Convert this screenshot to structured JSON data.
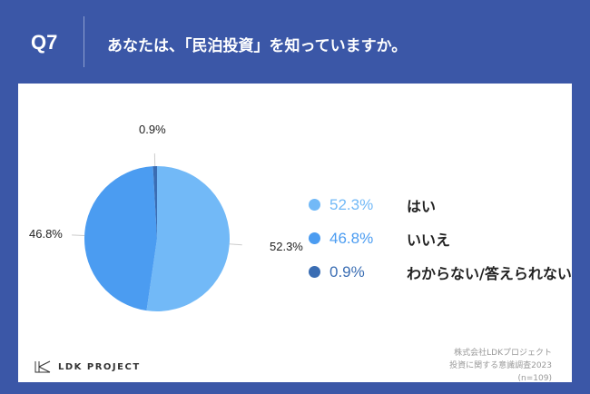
{
  "header": {
    "q": "Q7",
    "title": "あなたは、「民泊投資」を知っていますか。"
  },
  "chart_data": {
    "type": "pie",
    "title": "あなたは、「民泊投資」を知っていますか。",
    "categories": [
      "はい",
      "いいえ",
      "わからない/答えられない"
    ],
    "values": [
      52.3,
      46.8,
      0.9
    ],
    "labels": [
      "52.3%",
      "46.8%",
      "0.9%"
    ],
    "colors": [
      "#72b9f7",
      "#4b9cf1",
      "#3a6db3"
    ],
    "legend_position": "right"
  },
  "footer": {
    "logo": "LDK PROJECT",
    "source_lines": [
      "株式会社LDKプロジェクト",
      "投資に関する意識調査2023",
      "(n=109)"
    ]
  }
}
